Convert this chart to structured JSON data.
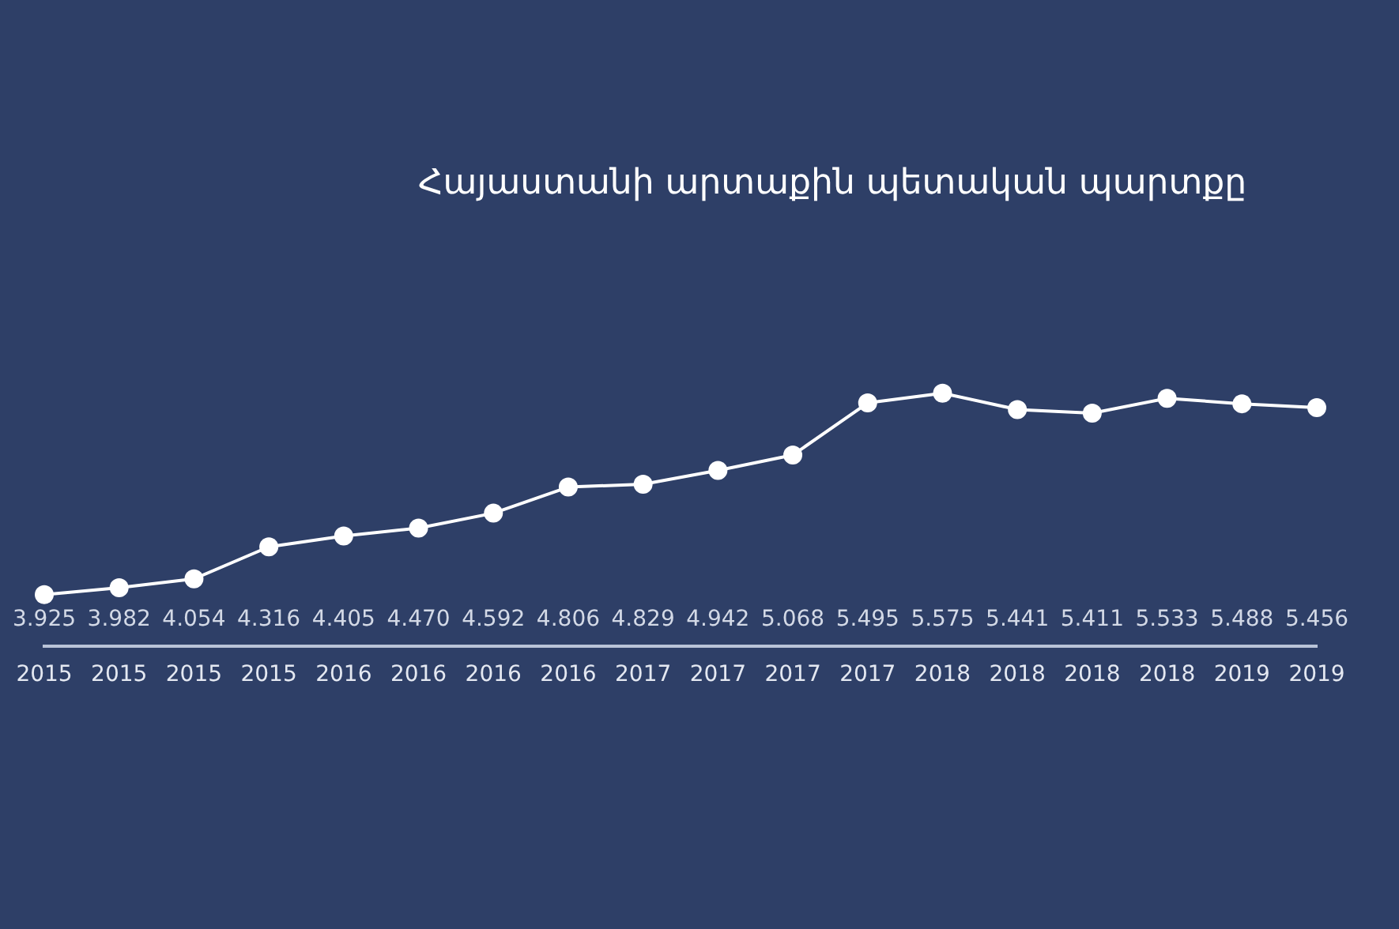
{
  "chart_data": {
    "type": "line",
    "title": "Հայաստանի արտաքին պետական պարտքը",
    "categories": [
      "2015",
      "2015",
      "2015",
      "2015",
      "2016",
      "2016",
      "2016",
      "2016",
      "2017",
      "2017",
      "2017",
      "2017",
      "2018",
      "2018",
      "2018",
      "2018",
      "2019",
      "2019"
    ],
    "values": [
      3.925,
      3.982,
      4.054,
      4.316,
      4.405,
      4.47,
      4.592,
      4.806,
      4.829,
      4.942,
      5.068,
      5.495,
      5.575,
      5.441,
      5.411,
      5.533,
      5.488,
      5.456
    ],
    "value_labels": [
      "3.925",
      "3.982",
      "4.054",
      "4.316",
      "4.405",
      "4.470",
      "4.592",
      "4.806",
      "4.829",
      "4.942",
      "5.068",
      "5.495",
      "5.575",
      "5.441",
      "5.411",
      "5.533",
      "5.488",
      "5.456"
    ],
    "color": "#ffffff",
    "marker": "circle",
    "line_style": "solid"
  }
}
